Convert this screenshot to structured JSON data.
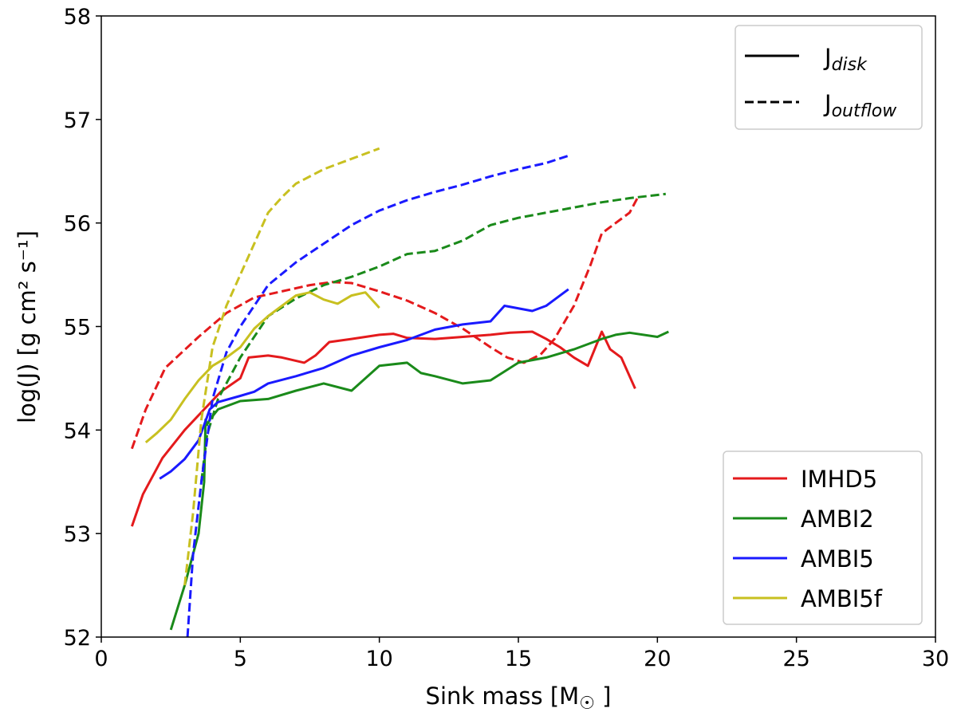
{
  "chart_data": {
    "type": "line",
    "xlabel": "Sink mass [M",
    "xlabel_symbol": "☉",
    "xlabel_close": "]",
    "ylabel": "log(J) [g cm² s⁻¹]",
    "xlim": [
      0,
      30
    ],
    "ylim": [
      52,
      58
    ],
    "x_ticks": [
      "0",
      "5",
      "10",
      "15",
      "20",
      "25",
      "30"
    ],
    "y_ticks": [
      "52",
      "53",
      "54",
      "55",
      "56",
      "57",
      "58"
    ],
    "grid": false,
    "style_legend": {
      "placement": "top-right",
      "entries": [
        {
          "label": "J",
          "sub": "disk",
          "dash": "solid"
        },
        {
          "label": "J",
          "sub": "outflow",
          "dash": "dashed"
        }
      ]
    },
    "color_legend": {
      "placement": "bottom-right",
      "entries": [
        {
          "label": "IMHD5",
          "color": "#e41a1c"
        },
        {
          "label": "AMBI2",
          "color": "#1a8a1a"
        },
        {
          "label": "AMBI5",
          "color": "#1a1aff"
        },
        {
          "label": "AMBI5f",
          "color": "#c8c020"
        }
      ]
    },
    "series": [
      {
        "name": "IMHD5",
        "quantity": "J_disk",
        "color": "#e41a1c",
        "dash": "solid",
        "x": [
          1.1,
          1.5,
          2.2,
          3,
          3.7,
          4.3,
          5,
          5.3,
          6,
          6.5,
          7.3,
          7.7,
          8.2,
          9,
          10,
          10.5,
          11,
          12,
          13,
          14,
          14.7,
          15.5,
          16,
          16.5,
          17,
          17.5,
          18,
          18.3,
          18.7,
          19.2
        ],
        "y": [
          53.07,
          53.38,
          53.73,
          54.0,
          54.2,
          54.37,
          54.5,
          54.7,
          54.72,
          54.7,
          54.65,
          54.72,
          54.85,
          54.88,
          54.92,
          54.93,
          54.89,
          54.88,
          54.9,
          54.92,
          54.94,
          54.95,
          54.88,
          54.8,
          54.7,
          54.62,
          54.95,
          54.78,
          54.7,
          54.4
        ]
      },
      {
        "name": "IMHD5",
        "quantity": "J_outflow",
        "color": "#e41a1c",
        "dash": "dashed",
        "x": [
          1.1,
          1.6,
          2.3,
          3.5,
          4.5,
          5.5,
          6.5,
          7.5,
          8.3,
          9,
          10,
          11,
          12,
          13,
          14,
          14.6,
          15.2,
          15.8,
          16.3,
          17,
          17.6,
          18,
          18.5,
          19,
          19.3
        ],
        "y": [
          53.82,
          54.2,
          54.6,
          54.9,
          55.13,
          55.28,
          55.34,
          55.4,
          55.43,
          55.42,
          55.34,
          55.25,
          55.13,
          54.98,
          54.8,
          54.7,
          54.65,
          54.73,
          54.88,
          55.2,
          55.6,
          55.9,
          56.0,
          56.1,
          56.25
        ]
      },
      {
        "name": "AMBI2",
        "quantity": "J_disk",
        "color": "#1a8a1a",
        "dash": "solid",
        "x": [
          2.5,
          3.0,
          3.5,
          3.7,
          3.75,
          3.8,
          3.9,
          4.2,
          5,
          6,
          7,
          8,
          9,
          10,
          11,
          11.5,
          12,
          13,
          14,
          15,
          16,
          17,
          18,
          18.5,
          19,
          20,
          20.4
        ],
        "y": [
          52.07,
          52.5,
          53.0,
          53.5,
          54.1,
          54.05,
          54.1,
          54.2,
          54.28,
          54.3,
          54.38,
          54.45,
          54.38,
          54.62,
          54.65,
          54.55,
          54.52,
          54.45,
          54.48,
          54.65,
          54.7,
          54.78,
          54.88,
          54.92,
          54.94,
          54.9,
          54.95
        ]
      },
      {
        "name": "AMBI2",
        "quantity": "J_outflow",
        "color": "#1a8a1a",
        "dash": "dashed",
        "x": [
          3.6,
          3.8,
          4.2,
          5,
          6,
          7,
          8,
          9,
          10,
          11,
          12,
          13,
          14,
          15,
          16,
          17,
          18,
          19,
          20.3
        ],
        "y": [
          53.5,
          53.95,
          54.3,
          54.7,
          55.1,
          55.27,
          55.4,
          55.48,
          55.58,
          55.7,
          55.73,
          55.83,
          55.98,
          56.05,
          56.1,
          56.15,
          56.2,
          56.24,
          56.28
        ]
      },
      {
        "name": "AMBI5",
        "quantity": "J_disk",
        "color": "#1a1aff",
        "dash": "solid",
        "x": [
          2.1,
          2.5,
          3,
          3.5,
          3.9,
          4.2,
          5,
          5.5,
          6,
          7,
          8,
          9,
          10,
          11,
          12,
          13,
          14,
          14.5,
          15.5,
          16,
          16.5,
          16.8
        ],
        "y": [
          53.53,
          53.6,
          53.72,
          53.9,
          54.2,
          54.27,
          54.33,
          54.37,
          54.45,
          54.52,
          54.6,
          54.72,
          54.8,
          54.87,
          54.97,
          55.02,
          55.05,
          55.2,
          55.15,
          55.2,
          55.3,
          55.36
        ]
      },
      {
        "name": "AMBI5",
        "quantity": "J_outflow",
        "color": "#1a1aff",
        "dash": "dashed",
        "x": [
          3.1,
          3.3,
          3.6,
          4,
          4.5,
          5,
          6,
          7,
          8,
          9,
          10,
          11,
          12,
          13,
          14,
          15,
          16,
          16.8
        ],
        "y": [
          52.0,
          52.8,
          53.5,
          54.3,
          54.75,
          55.0,
          55.4,
          55.62,
          55.8,
          55.98,
          56.12,
          56.22,
          56.3,
          56.37,
          56.45,
          56.52,
          56.58,
          56.65
        ]
      },
      {
        "name": "AMBI5f",
        "quantity": "J_disk",
        "color": "#c8c020",
        "dash": "solid",
        "x": [
          1.6,
          2,
          2.5,
          3,
          3.5,
          4,
          4.5,
          5,
          5.5,
          6,
          6.5,
          7,
          7.5,
          8,
          8.5,
          9,
          9.5,
          10
        ],
        "y": [
          53.88,
          53.97,
          54.1,
          54.3,
          54.48,
          54.62,
          54.7,
          54.8,
          54.98,
          55.1,
          55.2,
          55.3,
          55.33,
          55.26,
          55.22,
          55.3,
          55.33,
          55.18
        ]
      },
      {
        "name": "AMBI5f",
        "quantity": "J_outflow",
        "color": "#c8c020",
        "dash": "dashed",
        "x": [
          3.0,
          3.3,
          3.6,
          4,
          4.5,
          5,
          5.5,
          6,
          6.5,
          7,
          8,
          9,
          10
        ],
        "y": [
          52.5,
          53.2,
          54.1,
          54.8,
          55.2,
          55.5,
          55.8,
          56.1,
          56.25,
          56.38,
          56.52,
          56.62,
          56.72
        ]
      }
    ]
  }
}
